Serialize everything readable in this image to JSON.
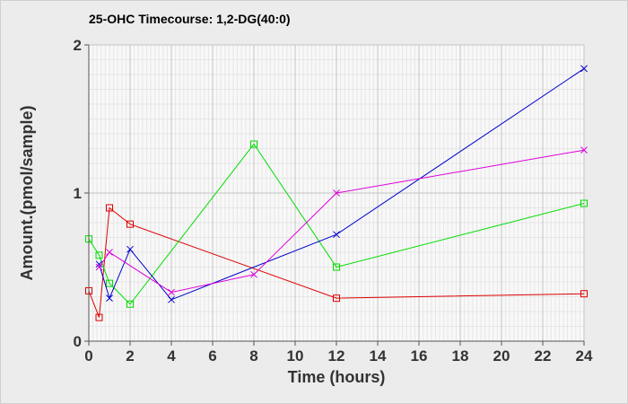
{
  "chart_data": {
    "type": "line",
    "title": "25-OHC Timecourse: 1,2-DG(40:0)",
    "xlabel": "Time (hours)",
    "ylabel": "Amount.(pmol/sample)",
    "xlim": [
      0,
      24
    ],
    "ylim": [
      0,
      2
    ],
    "xticks": [
      "0",
      "2",
      "4",
      "6",
      "8",
      "10",
      "12",
      "14",
      "16",
      "18",
      "20",
      "22",
      "24"
    ],
    "yticks": [
      "0",
      "1",
      "2"
    ],
    "grid": true,
    "legend": "none",
    "series": [
      {
        "color": "#dd0000",
        "marker": "square",
        "points": [
          [
            0,
            0.34
          ],
          [
            0.5,
            0.16
          ],
          [
            1,
            0.9
          ],
          [
            2,
            0.79
          ],
          [
            12,
            0.29
          ],
          [
            24,
            0.32
          ]
        ]
      },
      {
        "color": "#00dd00",
        "marker": "square",
        "points": [
          [
            0,
            0.69
          ],
          [
            0.5,
            0.58
          ],
          [
            1,
            0.39
          ],
          [
            2,
            0.25
          ],
          [
            8,
            1.33
          ],
          [
            12,
            0.5
          ],
          [
            24,
            0.93
          ]
        ]
      },
      {
        "color": "#0000cc",
        "marker": "x",
        "points": [
          [
            0.5,
            0.52
          ],
          [
            1,
            0.29
          ],
          [
            2,
            0.62
          ],
          [
            4,
            0.28
          ],
          [
            12,
            0.72
          ],
          [
            24,
            1.84
          ]
        ]
      },
      {
        "color": "#dd00dd",
        "marker": "x",
        "points": [
          [
            0.5,
            0.5
          ],
          [
            1,
            0.6
          ],
          [
            4,
            0.33
          ],
          [
            8,
            0.45
          ],
          [
            12,
            1.0
          ],
          [
            24,
            1.29
          ]
        ]
      }
    ]
  }
}
